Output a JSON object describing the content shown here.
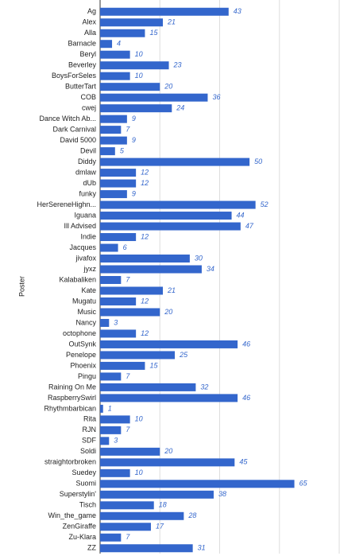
{
  "chart_data": {
    "type": "hbar",
    "y_label": "Poster",
    "categories": [
      "Ag",
      "Alex",
      "Alla",
      "Barnacle",
      "Beryl",
      "Beverley",
      "BoysForSeles",
      "ButterTart",
      "COB",
      "cwej",
      "Dance Witch Ab...",
      "Dark Carnival",
      "David 5000",
      "Devil",
      "Diddy",
      "dmlaw",
      "dUb",
      "funky",
      "HerSereneHighn...",
      "Iguana",
      "Ill Advised",
      "Indie",
      "Jacques",
      "jivafox",
      "jyxz",
      "Kalabaliken",
      "Kate",
      "Mugatu",
      "Music",
      "Nancy",
      "octophone",
      "OutSynk",
      "Penelope",
      "Phoenix",
      "Pingu",
      "Raining On Me",
      "RaspberrySwirl",
      "Rhythmbarbican",
      "Rita",
      "RJN",
      "SDF",
      "Soldi",
      "straightorbroken",
      "Suedey",
      "Suomi",
      "Superstylin'",
      "Tisch",
      "Win_the_game",
      "ZenGiraffe",
      "Zu-Klara",
      "ZZ"
    ],
    "values": [
      43,
      21,
      15,
      4,
      10,
      23,
      10,
      20,
      36,
      24,
      9,
      7,
      9,
      5,
      50,
      12,
      12,
      9,
      52,
      44,
      47,
      12,
      6,
      30,
      34,
      7,
      21,
      12,
      20,
      3,
      12,
      46,
      25,
      15,
      7,
      32,
      46,
      1,
      10,
      7,
      3,
      20,
      45,
      10,
      65,
      38,
      18,
      28,
      17,
      7,
      31
    ],
    "color": "#3366cc",
    "xlim": [
      0,
      80
    ],
    "xticks": [
      0,
      20,
      40,
      60,
      80
    ],
    "grid": true
  }
}
